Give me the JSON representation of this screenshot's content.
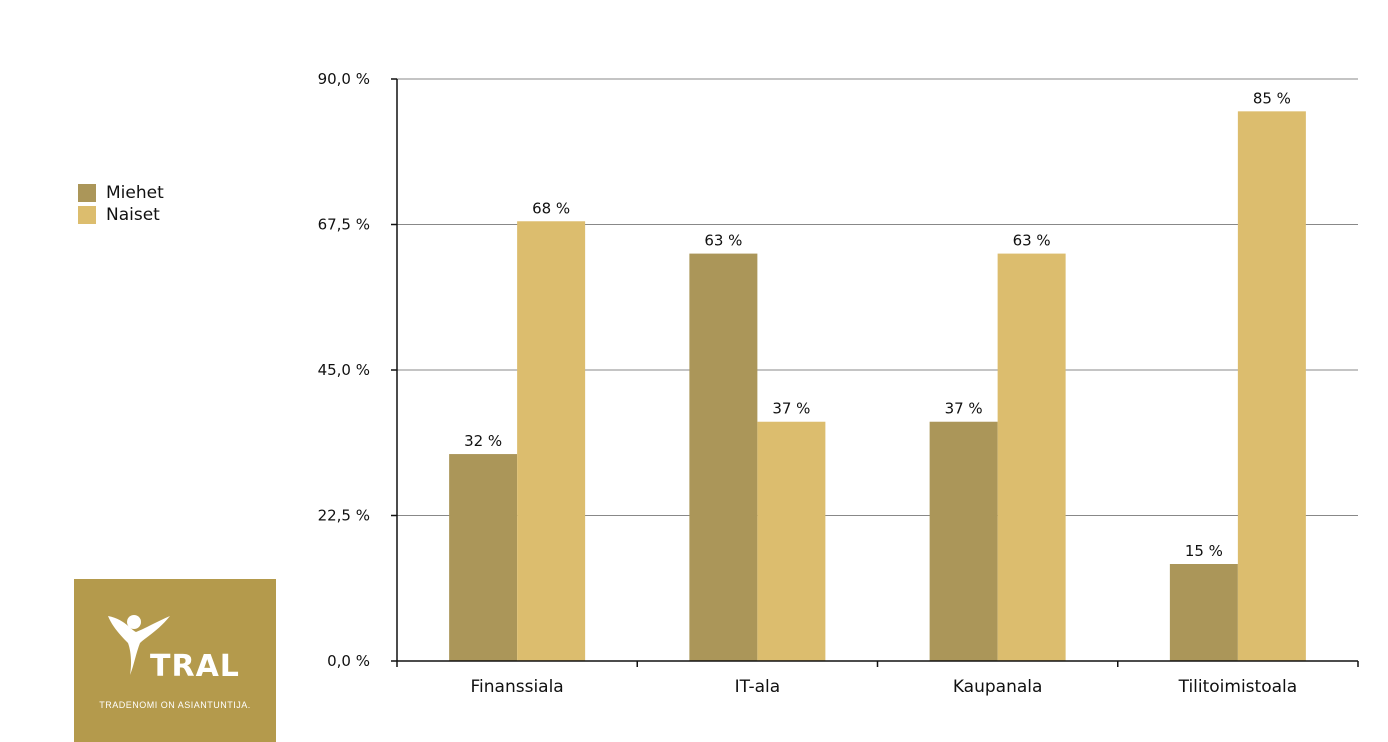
{
  "chart_data": {
    "type": "bar",
    "categories": [
      "Finanssiala",
      "IT-ala",
      "Kaupanala",
      "Tilitoimistoala"
    ],
    "series": [
      {
        "name": "Miehet",
        "values": [
          32,
          63,
          37,
          15
        ],
        "labels": [
          "32 %",
          "63 %",
          "37 %",
          "15 %"
        ],
        "color": "#ab9659"
      },
      {
        "name": "Naiset",
        "values": [
          68,
          37,
          63,
          85
        ],
        "labels": [
          "68 %",
          "37 %",
          "63 %",
          "85 %"
        ],
        "color": "#dcbd6e"
      }
    ],
    "yticks": [
      0,
      22.5,
      45,
      67.5,
      90
    ],
    "ytick_labels": [
      "0,0 %",
      "22,5 %",
      "45,0 %",
      "67,5 %",
      "90,0 %"
    ],
    "ylim": [
      0,
      90
    ],
    "grid": true,
    "legend_position": "left"
  },
  "logo": {
    "name": "TRAL",
    "tagline": "TRADENOMI ON ASIANTUNTIJA.",
    "color": "#b49a4c"
  }
}
